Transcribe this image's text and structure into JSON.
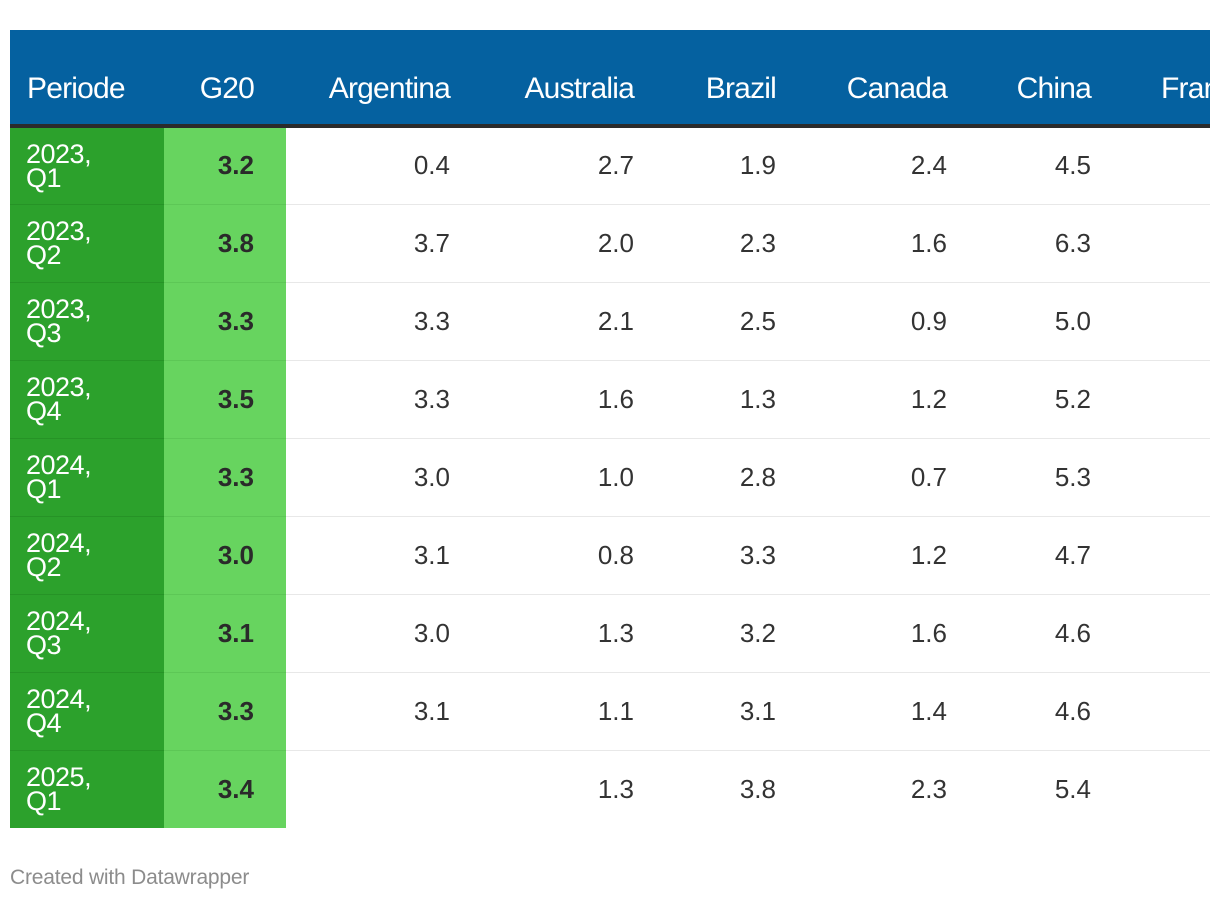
{
  "chart_data": {
    "type": "table",
    "columns": [
      "Periode",
      "G20",
      "Argentina",
      "Australia",
      "Brazil",
      "Canada",
      "China",
      "France"
    ],
    "rows": [
      {
        "period": [
          "2023,",
          "Q1"
        ],
        "values": [
          "3.2",
          "0.4",
          "2.7",
          "1.9",
          "2.4",
          "4.5",
          ""
        ]
      },
      {
        "period": [
          "2023,",
          "Q2"
        ],
        "values": [
          "3.8",
          "3.7",
          "2.0",
          "2.3",
          "1.6",
          "6.3",
          ""
        ]
      },
      {
        "period": [
          "2023,",
          "Q3"
        ],
        "values": [
          "3.3",
          "3.3",
          "2.1",
          "2.5",
          "0.9",
          "5.0",
          ""
        ]
      },
      {
        "period": [
          "2023,",
          "Q4"
        ],
        "values": [
          "3.5",
          "3.3",
          "1.6",
          "1.3",
          "1.2",
          "5.2",
          ""
        ]
      },
      {
        "period": [
          "2024,",
          "Q1"
        ],
        "values": [
          "3.3",
          "3.0",
          "1.0",
          "2.8",
          "0.7",
          "5.3",
          ""
        ]
      },
      {
        "period": [
          "2024,",
          "Q2"
        ],
        "values": [
          "3.0",
          "3.1",
          "0.8",
          "3.3",
          "1.2",
          "4.7",
          ""
        ]
      },
      {
        "period": [
          "2024,",
          "Q3"
        ],
        "values": [
          "3.1",
          "3.0",
          "1.3",
          "3.2",
          "1.6",
          "4.6",
          ""
        ]
      },
      {
        "period": [
          "2024,",
          "Q4"
        ],
        "values": [
          "3.3",
          "3.1",
          "1.1",
          "3.1",
          "1.4",
          "4.6",
          ""
        ]
      },
      {
        "period": [
          "2025,",
          "Q1"
        ],
        "values": [
          "3.4",
          "",
          "1.3",
          "3.8",
          "2.3",
          "5.4",
          ""
        ]
      }
    ],
    "colors": {
      "header_bg": "#0561a0",
      "period_bg": "#2ca12c",
      "g20_bg": "#67d45f"
    }
  },
  "footer": {
    "credit": "Created with Datawrapper"
  }
}
